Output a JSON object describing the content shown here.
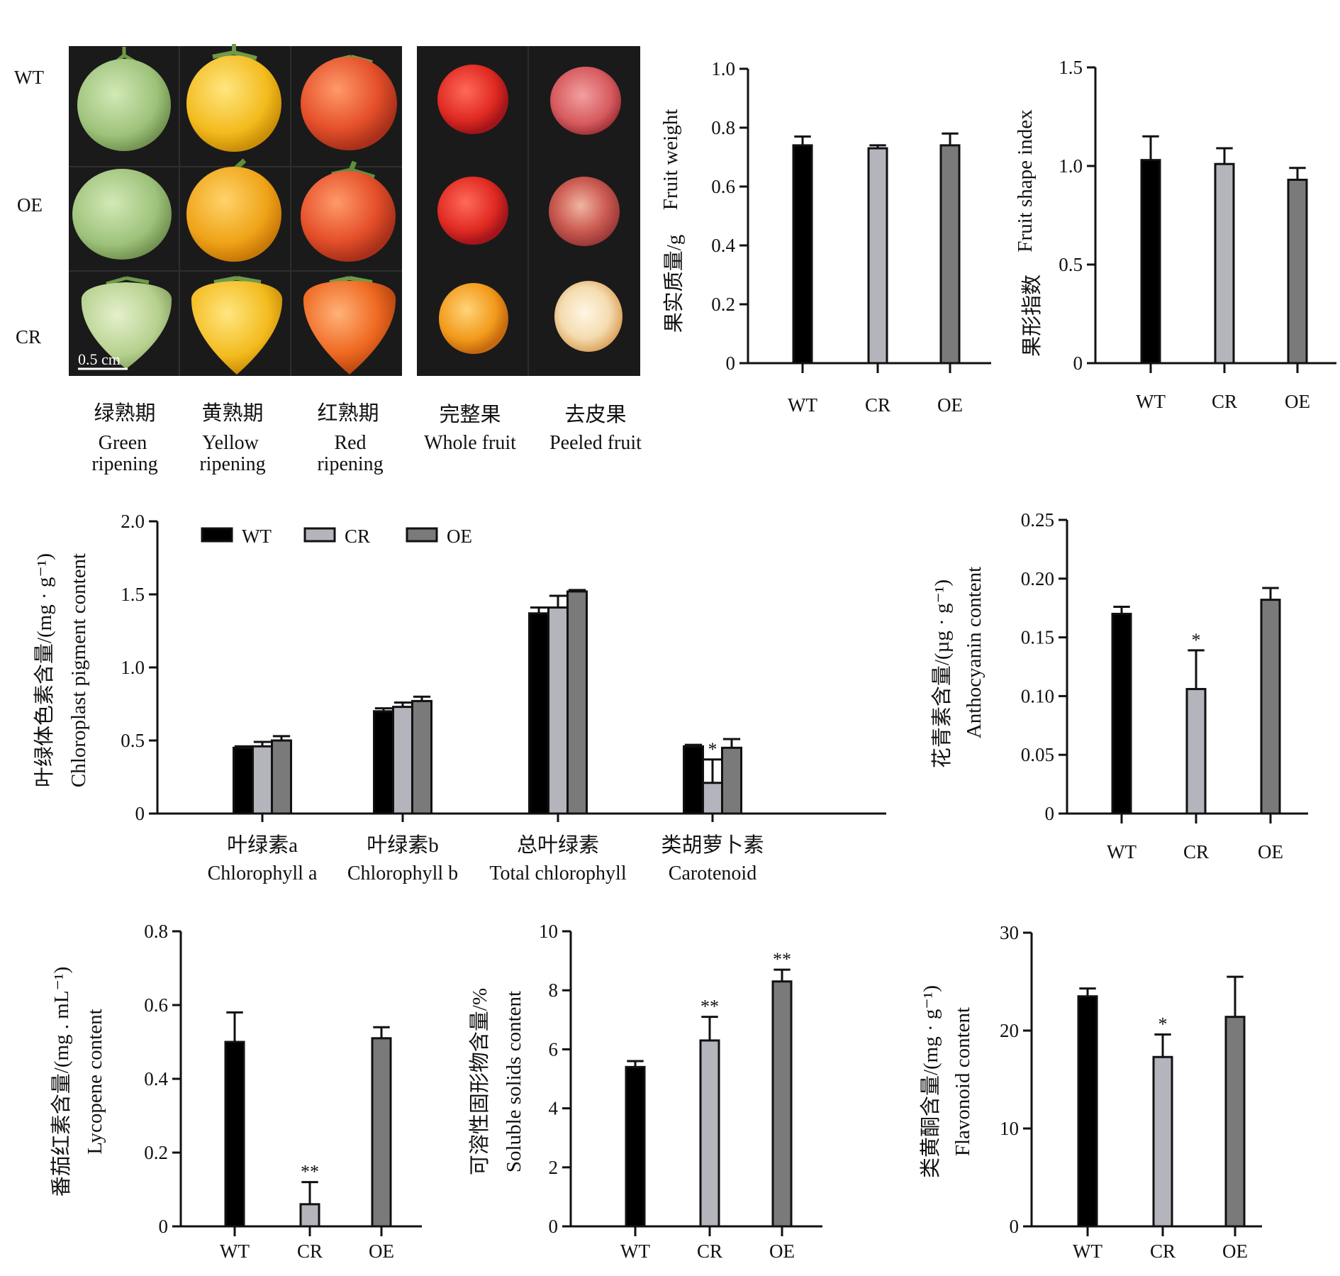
{
  "photos": {
    "row_labels": [
      "WT",
      "OE",
      "CR"
    ],
    "scale_bar": "0.5 cm",
    "stage_captions": [
      {
        "zh": "绿熟期",
        "en1": "Green",
        "en2": "ripening"
      },
      {
        "zh": "黄熟期",
        "en1": "Yellow",
        "en2": "ripening"
      },
      {
        "zh": "红熟期",
        "en1": "Red",
        "en2": "ripening"
      },
      {
        "zh": "完整果",
        "en1": "Whole fruit",
        "en2": ""
      },
      {
        "zh": "去皮果",
        "en1": "Peeled fruit",
        "en2": ""
      }
    ]
  },
  "colors": {
    "WT": "#000000",
    "CR": "#b4b4bc",
    "OE": "#7a7a7a",
    "photo_bg": "#1a1a1a"
  },
  "legend": [
    {
      "name": "WT",
      "color": "#000000"
    },
    {
      "name": "CR",
      "color": "#b4b4bc"
    },
    {
      "name": "OE",
      "color": "#7a7a7a"
    }
  ],
  "chart_data": [
    {
      "id": "fruit-weight",
      "type": "bar",
      "ylabel_zh": "果实质量/g",
      "ylabel_en": "Fruit weight",
      "categories": [
        "WT",
        "CR",
        "OE"
      ],
      "values": [
        0.74,
        0.73,
        0.74
      ],
      "errors": [
        0.03,
        0.01,
        0.04
      ],
      "sig": [
        "",
        "",
        ""
      ],
      "ylim": [
        0,
        1.0
      ],
      "ticks": [
        0,
        0.2,
        0.4,
        0.6,
        0.8,
        1.0
      ],
      "tick_labels": [
        "0",
        "0.2",
        "0.4",
        "0.6",
        "0.8",
        "1.0"
      ]
    },
    {
      "id": "fruit-shape-index",
      "type": "bar",
      "ylabel_zh": "果形指数",
      "ylabel_en": "Fruit shape index",
      "categories": [
        "WT",
        "CR",
        "OE"
      ],
      "values": [
        1.03,
        1.01,
        0.93
      ],
      "errors": [
        0.12,
        0.08,
        0.06
      ],
      "sig": [
        "",
        "",
        ""
      ],
      "ylim": [
        0,
        1.5
      ],
      "ticks": [
        0,
        0.5,
        1.0,
        1.5
      ],
      "tick_labels": [
        "0",
        "0.5",
        "1.0",
        "1.5"
      ]
    },
    {
      "id": "chloroplast-pigment",
      "type": "bar",
      "ylabel_zh": "叶绿体色素含量/(mg · g⁻¹)",
      "ylabel_en": "Chloroplast pigment content",
      "categories": [
        {
          "zh": "叶绿素a",
          "en": "Chlorophyll a"
        },
        {
          "zh": "叶绿素b",
          "en": "Chlorophyll b"
        },
        {
          "zh": "总叶绿素",
          "en": "Total chlorophyll"
        },
        {
          "zh": "类胡萝卜素",
          "en": "Carotenoid"
        }
      ],
      "series": [
        {
          "name": "WT",
          "values": [
            0.45,
            0.7,
            1.37,
            0.46
          ],
          "errors": [
            0.01,
            0.02,
            0.04,
            0.01
          ],
          "sig": [
            "",
            "",
            "",
            ""
          ]
        },
        {
          "name": "CR",
          "values": [
            0.46,
            0.73,
            1.41,
            0.21
          ],
          "errors": [
            0.03,
            0.03,
            0.08,
            0.16
          ],
          "sig": [
            "",
            "",
            "",
            "*"
          ]
        },
        {
          "name": "OE",
          "values": [
            0.5,
            0.77,
            1.52,
            0.45
          ],
          "errors": [
            0.03,
            0.03,
            0.01,
            0.06
          ],
          "sig": [
            "",
            "",
            "",
            ""
          ]
        }
      ],
      "legend_position": "top-left",
      "ylim": [
        0,
        2.0
      ],
      "ticks": [
        0,
        0.5,
        1.0,
        1.5,
        2.0
      ],
      "tick_labels": [
        "0",
        "0.5",
        "1.0",
        "1.5",
        "2.0"
      ]
    },
    {
      "id": "anthocyanin",
      "type": "bar",
      "ylabel_zh": "花青素含量/(µg · g⁻¹)",
      "ylabel_en": "Anthocyanin content",
      "categories": [
        "WT",
        "CR",
        "OE"
      ],
      "values": [
        0.17,
        0.106,
        0.182
      ],
      "errors": [
        0.006,
        0.033,
        0.01
      ],
      "sig": [
        "",
        "*",
        ""
      ],
      "ylim": [
        0,
        0.25
      ],
      "ticks": [
        0,
        0.05,
        0.1,
        0.15,
        0.2,
        0.25
      ],
      "tick_labels": [
        "0",
        "0.05",
        "0.10",
        "0.15",
        "0.20",
        "0.25"
      ]
    },
    {
      "id": "lycopene",
      "type": "bar",
      "ylabel_zh": "番茄红素含量/(mg . mL⁻¹)",
      "ylabel_en": "Lycopene content",
      "categories": [
        "WT",
        "CR",
        "OE"
      ],
      "values": [
        0.5,
        0.06,
        0.51
      ],
      "errors": [
        0.08,
        0.06,
        0.03
      ],
      "sig": [
        "",
        "**",
        ""
      ],
      "ylim": [
        0,
        0.8
      ],
      "ticks": [
        0,
        0.2,
        0.4,
        0.6,
        0.8
      ],
      "tick_labels": [
        "0",
        "0.2",
        "0.4",
        "0.6",
        "0.8"
      ]
    },
    {
      "id": "soluble-solids",
      "type": "bar",
      "ylabel_zh": "可溶性固形物含量/%",
      "ylabel_en": "Soluble solids content",
      "categories": [
        "WT",
        "CR",
        "OE"
      ],
      "values": [
        5.4,
        6.3,
        8.3
      ],
      "errors": [
        0.2,
        0.8,
        0.4
      ],
      "sig": [
        "",
        "**",
        "**"
      ],
      "ylim": [
        0,
        10
      ],
      "ticks": [
        0,
        2,
        4,
        6,
        8,
        10
      ],
      "tick_labels": [
        "0",
        "2",
        "4",
        "6",
        "8",
        "10"
      ]
    },
    {
      "id": "flavonoid",
      "type": "bar",
      "ylabel_zh": "类黄酮含量/(mg · g⁻¹)",
      "ylabel_en": "Flavonoid content",
      "categories": [
        "WT",
        "CR",
        "OE"
      ],
      "values": [
        23.5,
        17.3,
        21.4
      ],
      "errors": [
        0.8,
        2.3,
        4.1
      ],
      "sig": [
        "",
        "*",
        ""
      ],
      "ylim": [
        0,
        30
      ],
      "ticks": [
        0,
        10,
        20,
        30
      ],
      "tick_labels": [
        "0",
        "10",
        "20",
        "30"
      ]
    }
  ]
}
